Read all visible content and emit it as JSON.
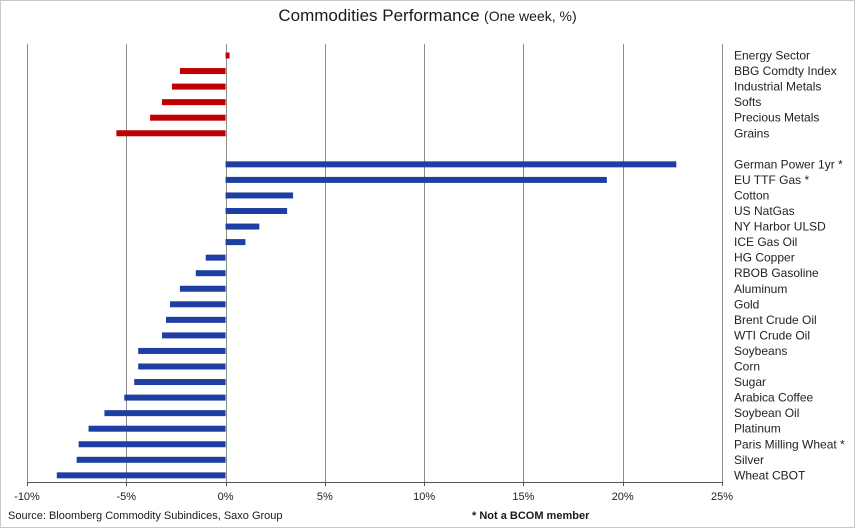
{
  "title_main": "Commodities Performance",
  "title_sub": "(One week,  %)",
  "source": "Source: Bloomberg Commodity Subindices, Saxo Group",
  "note": "* Not a BCOM member",
  "colors": {
    "sector": "#c00000",
    "commodity": "#1f3ea3",
    "grid": "#8c8c8c",
    "axis": "#555555"
  },
  "chart_data": {
    "type": "bar",
    "orientation": "horizontal",
    "title": "Commodities Performance",
    "subtitle": "(One week,  %)",
    "xlim": [
      -10,
      25
    ],
    "x_ticks": [
      -10,
      -5,
      0,
      5,
      10,
      15,
      20,
      25
    ],
    "x_tick_labels": [
      "-10%",
      "-5%",
      "0%",
      "5%",
      "10%",
      "15%",
      "20%",
      "25%"
    ],
    "grid": true,
    "groups": [
      {
        "color": "#c00000",
        "categories": [
          "Energy Sector",
          "BBG Comdty Index",
          "Industrial Metals",
          "Softs",
          "Precious Metals",
          "Grains"
        ],
        "values": [
          0.2,
          -2.3,
          -2.7,
          -3.2,
          -3.8,
          -5.5
        ]
      },
      {
        "color": "#1f3ea3",
        "categories": [
          "German Power 1yr *",
          "EU TTF Gas *",
          "Cotton",
          "US NatGas",
          "NY Harbor ULSD",
          "ICE Gas Oil",
          "HG Copper",
          "RBOB Gasoline",
          "Aluminum",
          "Gold",
          "Brent Crude Oil",
          "WTI Crude Oil",
          "Soybeans",
          "Corn",
          "Sugar",
          "Arabica Coffee",
          "Soybean Oil",
          "Platinum",
          "Paris Milling Wheat *",
          "Silver",
          "Wheat CBOT"
        ],
        "values": [
          22.7,
          19.2,
          3.4,
          3.1,
          1.7,
          1.0,
          -1.0,
          -1.5,
          -2.3,
          -2.8,
          -3.0,
          -3.2,
          -4.4,
          -4.4,
          -4.6,
          -5.1,
          -6.1,
          -6.9,
          -7.4,
          -7.5,
          -8.5
        ]
      }
    ]
  }
}
